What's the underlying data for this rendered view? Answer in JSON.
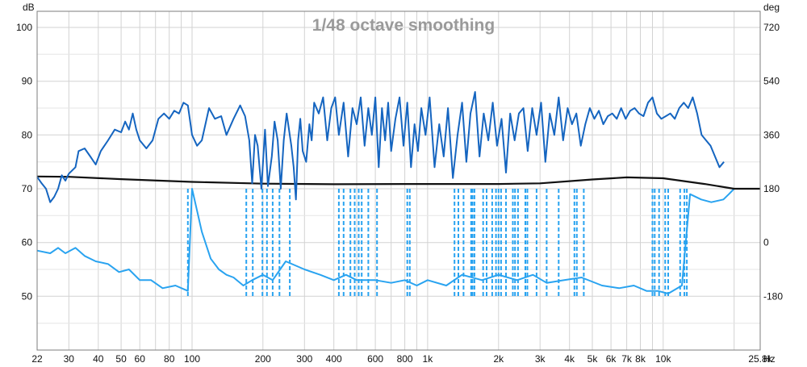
{
  "chart_data": {
    "type": "line",
    "title": "1/48 octave smoothing",
    "left_unit": "dB",
    "right_unit": "deg",
    "x_unit": "Hz",
    "x_scale": "log",
    "xlim": [
      22,
      25800
    ],
    "ylim_left": [
      40,
      103
    ],
    "ylim_right": [
      -360,
      774
    ],
    "grid": true,
    "x_ticks": [
      {
        "v": 22,
        "label": "22"
      },
      {
        "v": 30,
        "label": "30"
      },
      {
        "v": 40,
        "label": "40"
      },
      {
        "v": 50,
        "label": "50"
      },
      {
        "v": 60,
        "label": "60"
      },
      {
        "v": 80,
        "label": "80"
      },
      {
        "v": 100,
        "label": "100"
      },
      {
        "v": 200,
        "label": "200"
      },
      {
        "v": 300,
        "label": "300"
      },
      {
        "v": 400,
        "label": "400"
      },
      {
        "v": 600,
        "label": "600"
      },
      {
        "v": 800,
        "label": "800"
      },
      {
        "v": 1000,
        "label": "1k"
      },
      {
        "v": 2000,
        "label": "2k"
      },
      {
        "v": 3000,
        "label": "3k"
      },
      {
        "v": 4000,
        "label": "4k"
      },
      {
        "v": 5000,
        "label": "5k"
      },
      {
        "v": 6000,
        "label": "6k"
      },
      {
        "v": 7000,
        "label": "7k"
      },
      {
        "v": 8000,
        "label": "8k"
      },
      {
        "v": 10000,
        "label": "10k"
      },
      {
        "v": 25800,
        "label": "25.8k"
      }
    ],
    "y_left_ticks": [
      {
        "v": 100,
        "label": "100"
      },
      {
        "v": 90,
        "label": "90"
      },
      {
        "v": 80,
        "label": "80"
      },
      {
        "v": 70,
        "label": "70"
      },
      {
        "v": 60,
        "label": "60"
      },
      {
        "v": 50,
        "label": "50"
      }
    ],
    "y_right_ticks": [
      {
        "v": 720,
        "label": "720"
      },
      {
        "v": 540,
        "label": "540"
      },
      {
        "v": 360,
        "label": "360"
      },
      {
        "v": 180,
        "label": "180"
      },
      {
        "v": 0,
        "label": "0"
      },
      {
        "v": -180,
        "label": "-180"
      }
    ],
    "series": [
      {
        "axis": "left",
        "color": "#1565c0",
        "style": "solid",
        "points": [
          [
            22,
            72.2
          ],
          [
            23,
            71
          ],
          [
            24,
            70
          ],
          [
            25,
            67.5
          ],
          [
            26,
            68.5
          ],
          [
            27,
            70
          ],
          [
            28,
            72.5
          ],
          [
            29,
            71.5
          ],
          [
            30,
            72.8
          ],
          [
            32,
            74
          ],
          [
            33,
            77
          ],
          [
            35,
            77.5
          ],
          [
            37,
            76
          ],
          [
            39,
            74.5
          ],
          [
            41,
            77
          ],
          [
            44,
            79
          ],
          [
            47,
            81
          ],
          [
            50,
            80.5
          ],
          [
            52,
            82.5
          ],
          [
            54,
            81
          ],
          [
            56,
            84
          ],
          [
            58,
            81
          ],
          [
            60,
            79
          ],
          [
            64,
            77.5
          ],
          [
            68,
            79
          ],
          [
            72,
            83
          ],
          [
            76,
            84
          ],
          [
            80,
            83
          ],
          [
            84,
            84.5
          ],
          [
            88,
            84
          ],
          [
            92,
            86
          ],
          [
            96,
            85.5
          ],
          [
            100,
            80
          ],
          [
            105,
            78
          ],
          [
            110,
            79
          ],
          [
            118,
            85
          ],
          [
            125,
            83
          ],
          [
            133,
            83.5
          ],
          [
            140,
            80
          ],
          [
            150,
            83
          ],
          [
            160,
            85.5
          ],
          [
            168,
            83.5
          ],
          [
            175,
            79
          ],
          [
            180,
            71
          ],
          [
            185,
            80
          ],
          [
            190,
            78
          ],
          [
            197,
            70
          ],
          [
            204,
            81
          ],
          [
            210,
            70.5
          ],
          [
            218,
            76
          ],
          [
            224,
            82.5
          ],
          [
            231,
            79
          ],
          [
            238,
            70
          ],
          [
            245,
            79
          ],
          [
            252,
            84
          ],
          [
            258,
            81
          ],
          [
            264,
            78
          ],
          [
            270,
            74
          ],
          [
            276,
            68
          ],
          [
            282,
            79
          ],
          [
            288,
            83
          ],
          [
            295,
            77
          ],
          [
            305,
            75
          ],
          [
            315,
            82
          ],
          [
            322,
            79
          ],
          [
            330,
            86
          ],
          [
            345,
            84
          ],
          [
            360,
            87
          ],
          [
            375,
            79
          ],
          [
            390,
            85
          ],
          [
            405,
            87
          ],
          [
            420,
            80
          ],
          [
            440,
            86
          ],
          [
            460,
            76
          ],
          [
            480,
            85
          ],
          [
            500,
            82
          ],
          [
            520,
            87
          ],
          [
            540,
            78
          ],
          [
            560,
            85
          ],
          [
            580,
            80
          ],
          [
            600,
            87
          ],
          [
            620,
            74
          ],
          [
            640,
            85
          ],
          [
            660,
            79
          ],
          [
            680,
            86
          ],
          [
            700,
            77
          ],
          [
            730,
            83
          ],
          [
            760,
            87
          ],
          [
            790,
            78
          ],
          [
            820,
            86
          ],
          [
            850,
            74
          ],
          [
            880,
            82
          ],
          [
            910,
            77
          ],
          [
            940,
            85
          ],
          [
            980,
            80
          ],
          [
            1020,
            87
          ],
          [
            1070,
            74
          ],
          [
            1120,
            82
          ],
          [
            1170,
            76
          ],
          [
            1220,
            85
          ],
          [
            1280,
            72
          ],
          [
            1340,
            80
          ],
          [
            1400,
            86
          ],
          [
            1460,
            75
          ],
          [
            1520,
            84
          ],
          [
            1590,
            88
          ],
          [
            1660,
            76
          ],
          [
            1730,
            84
          ],
          [
            1810,
            79
          ],
          [
            1890,
            86
          ],
          [
            1970,
            78
          ],
          [
            2060,
            83
          ],
          [
            2150,
            73
          ],
          [
            2240,
            84
          ],
          [
            2340,
            79
          ],
          [
            2440,
            84
          ],
          [
            2550,
            85
          ],
          [
            2660,
            77
          ],
          [
            2780,
            85
          ],
          [
            2900,
            80
          ],
          [
            3030,
            86
          ],
          [
            3160,
            75
          ],
          [
            3300,
            84
          ],
          [
            3450,
            80
          ],
          [
            3600,
            87
          ],
          [
            3760,
            79
          ],
          [
            3930,
            85
          ],
          [
            4100,
            82
          ],
          [
            4280,
            84
          ],
          [
            4470,
            78
          ],
          [
            4670,
            82
          ],
          [
            4880,
            85
          ],
          [
            5100,
            83
          ],
          [
            5330,
            84.5
          ],
          [
            5570,
            82
          ],
          [
            5820,
            83.5
          ],
          [
            6080,
            84
          ],
          [
            6350,
            83
          ],
          [
            6630,
            85
          ],
          [
            6930,
            83
          ],
          [
            7240,
            84.5
          ],
          [
            7560,
            85
          ],
          [
            7900,
            84
          ],
          [
            8250,
            83.5
          ],
          [
            8620,
            86
          ],
          [
            9000,
            87
          ],
          [
            9400,
            84
          ],
          [
            9820,
            83
          ],
          [
            10260,
            83.5
          ],
          [
            10720,
            84
          ],
          [
            11200,
            83
          ],
          [
            11700,
            85
          ],
          [
            12220,
            86
          ],
          [
            12770,
            85
          ],
          [
            13340,
            87
          ],
          [
            13930,
            84
          ],
          [
            14550,
            80
          ],
          [
            15200,
            79
          ],
          [
            15880,
            78
          ],
          [
            16590,
            76
          ],
          [
            17330,
            74
          ],
          [
            18100,
            75
          ]
        ]
      },
      {
        "axis": "right",
        "color": "#111111",
        "style": "solid",
        "points": [
          [
            22,
            221
          ],
          [
            30,
            220
          ],
          [
            50,
            212
          ],
          [
            100,
            203
          ],
          [
            200,
            197
          ],
          [
            400,
            195
          ],
          [
            800,
            196
          ],
          [
            1000,
            196
          ],
          [
            2000,
            196
          ],
          [
            3000,
            198
          ],
          [
            5000,
            211
          ],
          [
            7000,
            218
          ],
          [
            10000,
            215
          ],
          [
            15000,
            196
          ],
          [
            20000,
            180
          ],
          [
            25800,
            180
          ]
        ]
      },
      {
        "axis": "left",
        "color": "#29a3f0",
        "style": "solid",
        "points": [
          [
            22,
            58.5
          ],
          [
            25,
            58
          ],
          [
            27,
            59
          ],
          [
            29,
            58
          ],
          [
            32,
            59
          ],
          [
            35,
            57.5
          ],
          [
            39,
            56.5
          ],
          [
            44,
            56
          ],
          [
            49,
            54.5
          ],
          [
            54,
            55
          ],
          [
            60,
            53
          ],
          [
            67,
            53
          ],
          [
            75,
            51.5
          ],
          [
            85,
            52
          ],
          [
            96,
            51
          ],
          [
            100,
            70
          ],
          [
            110,
            62
          ],
          [
            120,
            57
          ],
          [
            130,
            55
          ],
          [
            140,
            54
          ],
          [
            150,
            53.5
          ],
          [
            165,
            52
          ],
          [
            180,
            53
          ],
          [
            200,
            54
          ],
          [
            220,
            53
          ],
          [
            250,
            56.5
          ],
          [
            300,
            55
          ],
          [
            350,
            54
          ],
          [
            400,
            53
          ],
          [
            450,
            54
          ],
          [
            500,
            53
          ],
          [
            600,
            53
          ],
          [
            700,
            52.5
          ],
          [
            800,
            53
          ],
          [
            900,
            52
          ],
          [
            1000,
            53
          ],
          [
            1200,
            52
          ],
          [
            1400,
            54
          ],
          [
            1700,
            53
          ],
          [
            2000,
            54
          ],
          [
            2400,
            53
          ],
          [
            2800,
            54
          ],
          [
            3200,
            52.5
          ],
          [
            3800,
            53
          ],
          [
            4500,
            53.5
          ],
          [
            5500,
            52
          ],
          [
            6500,
            51.5
          ],
          [
            7500,
            52
          ],
          [
            8500,
            51
          ],
          [
            9500,
            51
          ],
          [
            10500,
            50.5
          ],
          [
            12000,
            52
          ],
          [
            13000,
            69
          ],
          [
            14500,
            68
          ],
          [
            16000,
            67.5
          ],
          [
            18000,
            68
          ],
          [
            19000,
            69
          ],
          [
            20000,
            70
          ]
        ]
      }
    ],
    "phase_wraps": [
      96,
      170,
      181,
      199,
      208,
      220,
      235,
      260,
      420,
      440,
      470,
      490,
      510,
      525,
      560,
      610,
      820,
      840,
      1300,
      1350,
      1420,
      1530,
      1550,
      1580,
      1720,
      1780,
      1880,
      1950,
      2000,
      2050,
      2150,
      2300,
      2350,
      2420,
      2600,
      2650,
      2900,
      3200,
      3600,
      4200,
      4300,
      4600,
      9000,
      9200,
      9600,
      10200,
      10500,
      11800,
      12300,
      12600
    ]
  }
}
